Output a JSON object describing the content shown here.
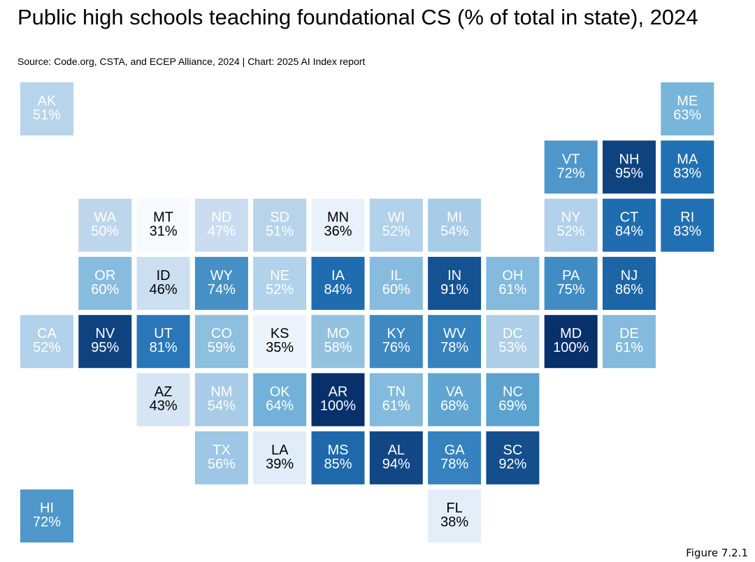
{
  "title": "Public high schools teaching foundational CS (% of total in state), 2024",
  "subtitle": "Source: Code.org, CSTA, and ECEP Alliance, 2024 | Chart: 2025 AI Index report",
  "figure_label": "Figure 7.2.1",
  "chart_data": {
    "type": "heatmap",
    "title": "Public high schools teaching foundational CS (% of total in state), 2024",
    "value_unit": "%",
    "color_scale": {
      "min": 31,
      "max": 100,
      "low_color": "#f7fbff",
      "high_color": "#08306b"
    },
    "states": [
      {
        "code": "AK",
        "value": 51,
        "row": 0,
        "col": 0
      },
      {
        "code": "ME",
        "value": 63,
        "row": 0,
        "col": 11
      },
      {
        "code": "VT",
        "value": 72,
        "row": 1,
        "col": 9
      },
      {
        "code": "NH",
        "value": 95,
        "row": 1,
        "col": 10
      },
      {
        "code": "MA",
        "value": 83,
        "row": 1,
        "col": 11
      },
      {
        "code": "WA",
        "value": 50,
        "row": 2,
        "col": 1
      },
      {
        "code": "MT",
        "value": 31,
        "row": 2,
        "col": 2
      },
      {
        "code": "ND",
        "value": 47,
        "row": 2,
        "col": 3
      },
      {
        "code": "SD",
        "value": 51,
        "row": 2,
        "col": 4
      },
      {
        "code": "MN",
        "value": 36,
        "row": 2,
        "col": 5
      },
      {
        "code": "WI",
        "value": 52,
        "row": 2,
        "col": 6
      },
      {
        "code": "MI",
        "value": 54,
        "row": 2,
        "col": 7
      },
      {
        "code": "NY",
        "value": 52,
        "row": 2,
        "col": 9
      },
      {
        "code": "CT",
        "value": 84,
        "row": 2,
        "col": 10
      },
      {
        "code": "RI",
        "value": 83,
        "row": 2,
        "col": 11
      },
      {
        "code": "OR",
        "value": 60,
        "row": 3,
        "col": 1
      },
      {
        "code": "ID",
        "value": 46,
        "row": 3,
        "col": 2
      },
      {
        "code": "WY",
        "value": 74,
        "row": 3,
        "col": 3
      },
      {
        "code": "NE",
        "value": 52,
        "row": 3,
        "col": 4
      },
      {
        "code": "IA",
        "value": 84,
        "row": 3,
        "col": 5
      },
      {
        "code": "IL",
        "value": 60,
        "row": 3,
        "col": 6
      },
      {
        "code": "IN",
        "value": 91,
        "row": 3,
        "col": 7
      },
      {
        "code": "OH",
        "value": 61,
        "row": 3,
        "col": 8
      },
      {
        "code": "PA",
        "value": 75,
        "row": 3,
        "col": 9
      },
      {
        "code": "NJ",
        "value": 86,
        "row": 3,
        "col": 10
      },
      {
        "code": "CA",
        "value": 52,
        "row": 4,
        "col": 0
      },
      {
        "code": "NV",
        "value": 95,
        "row": 4,
        "col": 1
      },
      {
        "code": "UT",
        "value": 81,
        "row": 4,
        "col": 2
      },
      {
        "code": "CO",
        "value": 59,
        "row": 4,
        "col": 3
      },
      {
        "code": "KS",
        "value": 35,
        "row": 4,
        "col": 4
      },
      {
        "code": "MO",
        "value": 58,
        "row": 4,
        "col": 5
      },
      {
        "code": "KY",
        "value": 76,
        "row": 4,
        "col": 6
      },
      {
        "code": "WV",
        "value": 78,
        "row": 4,
        "col": 7
      },
      {
        "code": "DC",
        "value": 53,
        "row": 4,
        "col": 8
      },
      {
        "code": "MD",
        "value": 100,
        "row": 4,
        "col": 9
      },
      {
        "code": "DE",
        "value": 61,
        "row": 4,
        "col": 10
      },
      {
        "code": "AZ",
        "value": 43,
        "row": 5,
        "col": 2
      },
      {
        "code": "NM",
        "value": 54,
        "row": 5,
        "col": 3
      },
      {
        "code": "OK",
        "value": 64,
        "row": 5,
        "col": 4
      },
      {
        "code": "AR",
        "value": 100,
        "row": 5,
        "col": 5
      },
      {
        "code": "TN",
        "value": 61,
        "row": 5,
        "col": 6
      },
      {
        "code": "VA",
        "value": 68,
        "row": 5,
        "col": 7
      },
      {
        "code": "NC",
        "value": 69,
        "row": 5,
        "col": 8
      },
      {
        "code": "TX",
        "value": 56,
        "row": 6,
        "col": 3
      },
      {
        "code": "LA",
        "value": 39,
        "row": 6,
        "col": 4
      },
      {
        "code": "MS",
        "value": 85,
        "row": 6,
        "col": 5
      },
      {
        "code": "AL",
        "value": 94,
        "row": 6,
        "col": 6
      },
      {
        "code": "GA",
        "value": 78,
        "row": 6,
        "col": 7
      },
      {
        "code": "SC",
        "value": 92,
        "row": 6,
        "col": 8
      },
      {
        "code": "HI",
        "value": 72,
        "row": 7,
        "col": 0
      },
      {
        "code": "FL",
        "value": 38,
        "row": 7,
        "col": 7
      }
    ]
  }
}
